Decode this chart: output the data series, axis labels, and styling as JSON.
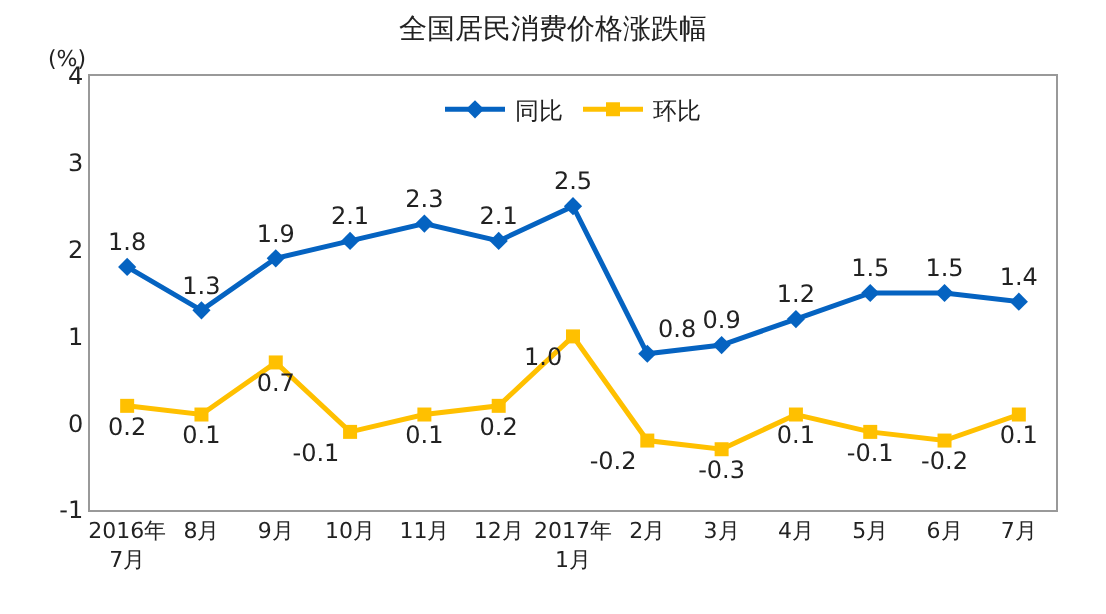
{
  "chart_data": {
    "type": "line",
    "title": "全国居民消费价格涨跌幅",
    "ylabel": "(%)",
    "categories": [
      "2016年\n7月",
      "8月",
      "9月",
      "10月",
      "11月",
      "12月",
      "2017年\n1月",
      "2月",
      "3月",
      "4月",
      "5月",
      "6月",
      "7月"
    ],
    "series": [
      {
        "name": "同比",
        "color": "#0563c1",
        "marker": "diamond",
        "values": [
          1.8,
          1.3,
          1.9,
          2.1,
          2.3,
          2.1,
          2.5,
          0.8,
          0.9,
          1.2,
          1.5,
          1.5,
          1.4
        ],
        "value_labels": [
          "1.8",
          "1.3",
          "1.9",
          "2.1",
          "2.3",
          "2.1",
          "2.5",
          "0.8",
          "0.9",
          "1.2",
          "1.5",
          "1.5",
          "1.4"
        ]
      },
      {
        "name": "环比",
        "color": "#ffc000",
        "marker": "square",
        "values": [
          0.2,
          0.1,
          0.7,
          -0.1,
          0.1,
          0.2,
          1.0,
          -0.2,
          -0.3,
          0.1,
          -0.1,
          -0.2,
          0.1
        ],
        "value_labels": [
          "0.2",
          "0.1",
          "0.7",
          "-0.1",
          "0.1",
          "0.2",
          "1.0",
          "-0.2",
          "-0.3",
          "0.1",
          "-0.1",
          "-0.2",
          "0.1"
        ]
      }
    ],
    "ylim": [
      -1,
      4
    ],
    "yticks": [
      -1,
      0,
      1,
      2,
      3,
      4
    ],
    "legend": "top"
  }
}
